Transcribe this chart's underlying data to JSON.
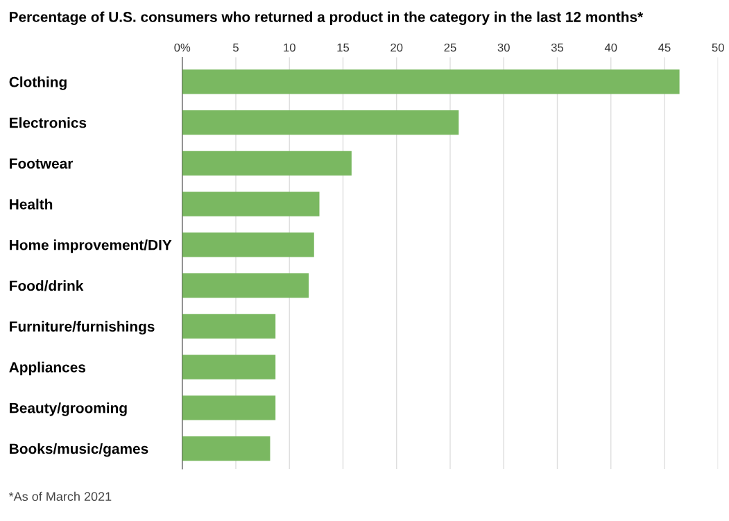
{
  "chart_data": {
    "type": "bar",
    "orientation": "horizontal",
    "title": "Percentage of U.S. consumers who returned a product in the category in the last 12 months*",
    "categories": [
      "Clothing",
      "Electronics",
      "Footwear",
      "Health",
      "Home improvement/DIY",
      "Food/drink",
      "Furniture/furnishings",
      "Appliances",
      "Beauty/grooming",
      "Books/music/games"
    ],
    "values": [
      46.4,
      25.8,
      15.8,
      12.8,
      12.3,
      11.8,
      8.7,
      8.7,
      8.7,
      8.2
    ],
    "color": "#7ab861",
    "xlim": [
      0,
      50
    ],
    "xticks": [
      {
        "value": 0,
        "label": "0%"
      },
      5,
      10,
      15,
      20,
      25,
      30,
      35,
      40,
      45,
      50
    ],
    "grid": "x",
    "legend": false,
    "annotations": [
      "*As of March 2021"
    ]
  }
}
